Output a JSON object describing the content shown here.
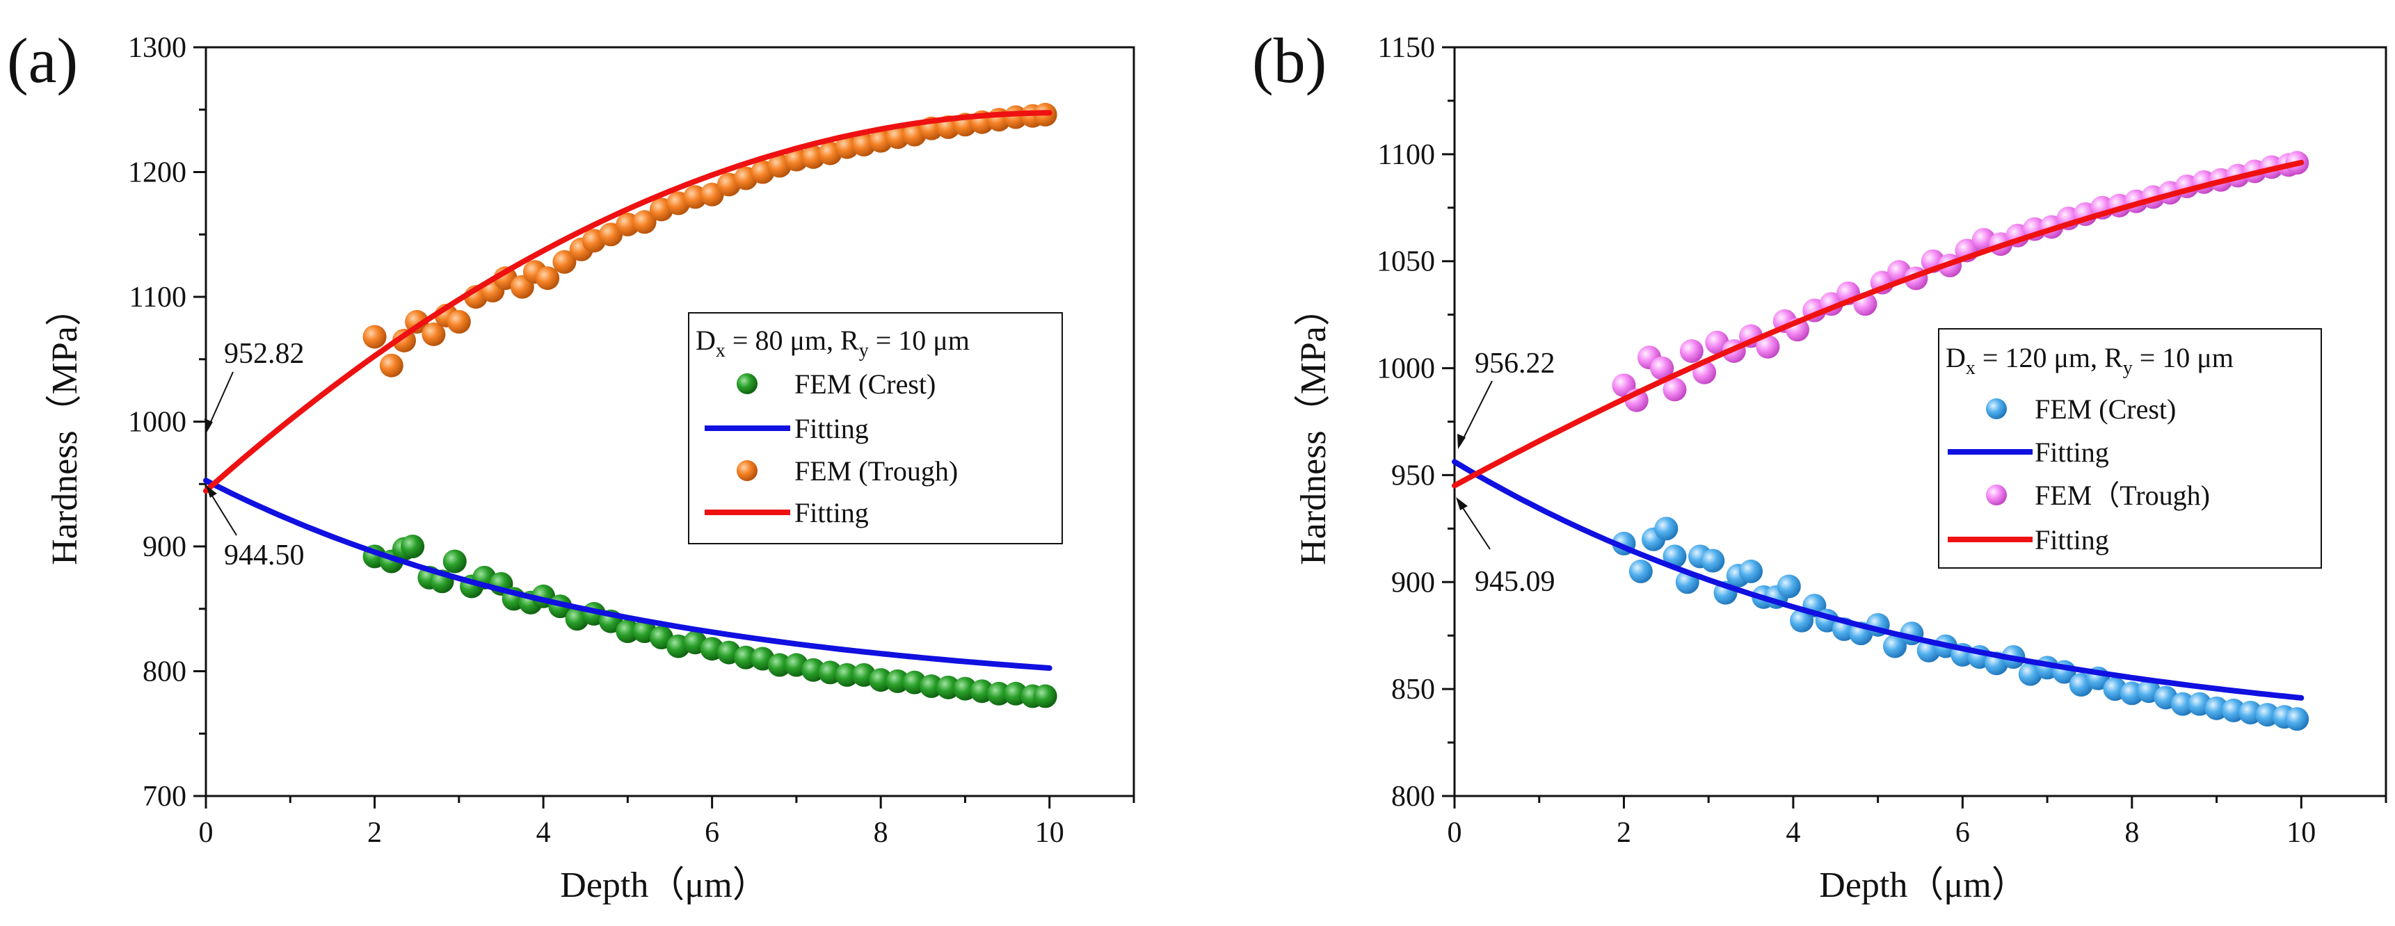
{
  "chart_data": [
    {
      "type": "scatter",
      "panel_label": "(a)",
      "xlabel": "Depth（μm）",
      "ylabel": "Hardness（MPa）",
      "xlim": [
        0,
        11
      ],
      "ylim": [
        700,
        1300
      ],
      "xticks": [
        0,
        2,
        4,
        6,
        8,
        10
      ],
      "yticks": [
        700,
        800,
        900,
        1000,
        1100,
        1200,
        1300
      ],
      "legend": {
        "title": {
          "main": "D",
          "sub1": "x",
          "mid": " = 80 μm, R",
          "sub2": "y",
          "end": " = 10 μm"
        },
        "entries": [
          "FEM  (Crest)",
          "Fitting",
          "FEM  (Trough)",
          "Fitting"
        ],
        "placement": "center-right"
      },
      "annotations": [
        {
          "text": "952.82",
          "x": 0,
          "y": 952.82,
          "position": "above"
        },
        {
          "text": "944.50",
          "x": 0,
          "y": 944.5,
          "position": "below"
        }
      ],
      "colors": {
        "crest": "#1a8c1a",
        "trough": "#f07a22",
        "fit_crest": "#1010e0",
        "fit_trough": "#ee1111"
      },
      "series": [
        {
          "name": "FEM  (Crest)",
          "kind": "scatter",
          "x": [
            2.0,
            2.2,
            2.35,
            2.45,
            2.65,
            2.8,
            2.95,
            3.15,
            3.3,
            3.5,
            3.65,
            3.85,
            4.0,
            4.2,
            4.4,
            4.6,
            4.8,
            5.0,
            5.2,
            5.4,
            5.6,
            5.8,
            6.0,
            6.2,
            6.4,
            6.6,
            6.8,
            7.0,
            7.2,
            7.4,
            7.6,
            7.8,
            8.0,
            8.2,
            8.4,
            8.6,
            8.8,
            9.0,
            9.2,
            9.4,
            9.6,
            9.8,
            9.95
          ],
          "y": [
            892,
            888,
            898,
            900,
            875,
            872,
            888,
            868,
            875,
            870,
            858,
            855,
            860,
            852,
            842,
            846,
            840,
            832,
            832,
            827,
            820,
            823,
            818,
            815,
            811,
            810,
            805,
            805,
            801,
            799,
            797,
            797,
            793,
            792,
            791,
            788,
            787,
            786,
            784,
            782,
            782,
            780,
            780
          ]
        },
        {
          "name": "Fitting",
          "kind": "line",
          "a": 779.0,
          "b": 173.82,
          "c": 0.2
        },
        {
          "name": "FEM  (Trough)",
          "kind": "scatter",
          "x": [
            2.0,
            2.2,
            2.35,
            2.5,
            2.7,
            2.85,
            3.0,
            3.2,
            3.4,
            3.55,
            3.75,
            3.9,
            4.05,
            4.25,
            4.45,
            4.6,
            4.8,
            5.0,
            5.2,
            5.4,
            5.6,
            5.8,
            6.0,
            6.2,
            6.4,
            6.6,
            6.8,
            7.0,
            7.2,
            7.4,
            7.6,
            7.8,
            8.0,
            8.2,
            8.4,
            8.6,
            8.8,
            9.0,
            9.2,
            9.4,
            9.6,
            9.8,
            9.95
          ],
          "y": [
            1068,
            1045,
            1065,
            1080,
            1070,
            1085,
            1080,
            1100,
            1105,
            1115,
            1108,
            1120,
            1115,
            1128,
            1138,
            1145,
            1150,
            1158,
            1160,
            1170,
            1175,
            1180,
            1182,
            1190,
            1195,
            1200,
            1205,
            1210,
            1212,
            1215,
            1220,
            1222,
            1225,
            1228,
            1230,
            1235,
            1236,
            1238,
            1240,
            1242,
            1244,
            1245,
            1246
          ]
        },
        {
          "name": "Fitting",
          "kind": "quad",
          "p0": 944.5,
          "p1": 60.0,
          "p2": -2.97
        }
      ]
    },
    {
      "type": "scatter",
      "panel_label": "(b)",
      "xlabel": "Depth（μm）",
      "ylabel": "Hardness（MPa）",
      "xlim": [
        0,
        11
      ],
      "ylim": [
        800,
        1150
      ],
      "xticks": [
        0,
        2,
        4,
        6,
        8,
        10
      ],
      "yticks": [
        800,
        850,
        900,
        950,
        1000,
        1050,
        1100,
        1150
      ],
      "legend": {
        "title": {
          "main": "D",
          "sub1": "x",
          "mid": " = 120 μm, R",
          "sub2": "y",
          "end": " = 10 μm"
        },
        "entries": [
          "FEM  (Crest)",
          "Fitting",
          "FEM（Trough)",
          "Fitting"
        ],
        "placement": "center-right"
      },
      "annotations": [
        {
          "text": "956.22",
          "x": 0,
          "y": 956.22,
          "position": "above"
        },
        {
          "text": "945.09",
          "x": 0,
          "y": 945.09,
          "position": "below"
        }
      ],
      "colors": {
        "crest": "#4aa8e8",
        "trough": "#f07ef0",
        "fit_crest": "#1010e0",
        "fit_trough": "#ee1111"
      },
      "series": [
        {
          "name": "FEM  (Crest)",
          "kind": "scatter",
          "x": [
            2.0,
            2.2,
            2.35,
            2.5,
            2.6,
            2.75,
            2.9,
            3.05,
            3.2,
            3.35,
            3.5,
            3.65,
            3.8,
            3.95,
            4.1,
            4.25,
            4.4,
            4.6,
            4.8,
            5.0,
            5.2,
            5.4,
            5.6,
            5.8,
            6.0,
            6.2,
            6.4,
            6.6,
            6.8,
            7.0,
            7.2,
            7.4,
            7.6,
            7.8,
            8.0,
            8.2,
            8.4,
            8.6,
            8.8,
            9.0,
            9.2,
            9.4,
            9.6,
            9.8,
            9.95
          ],
          "y": [
            918,
            905,
            920,
            925,
            912,
            900,
            912,
            910,
            895,
            903,
            905,
            893,
            893,
            898,
            882,
            889,
            882,
            878,
            876,
            880,
            870,
            876,
            868,
            870,
            866,
            865,
            862,
            865,
            857,
            860,
            858,
            852,
            855,
            850,
            848,
            849,
            846,
            843,
            843,
            841,
            840,
            839,
            838,
            837,
            836
          ]
        },
        {
          "name": "Fitting",
          "kind": "line",
          "a": 824.0,
          "b": 132.22,
          "c": 0.18
        },
        {
          "name": "FEM（Trough)",
          "kind": "scatter",
          "x": [
            2.0,
            2.15,
            2.3,
            2.45,
            2.6,
            2.8,
            2.95,
            3.1,
            3.3,
            3.5,
            3.7,
            3.9,
            4.05,
            4.25,
            4.45,
            4.65,
            4.85,
            5.05,
            5.25,
            5.45,
            5.65,
            5.85,
            6.05,
            6.25,
            6.45,
            6.65,
            6.85,
            7.05,
            7.25,
            7.45,
            7.65,
            7.85,
            8.05,
            8.25,
            8.45,
            8.65,
            8.85,
            9.05,
            9.25,
            9.45,
            9.65,
            9.85,
            9.95
          ],
          "y": [
            992,
            985,
            1005,
            1000,
            990,
            1008,
            998,
            1012,
            1008,
            1015,
            1010,
            1022,
            1018,
            1027,
            1030,
            1035,
            1030,
            1040,
            1045,
            1042,
            1050,
            1048,
            1055,
            1060,
            1058,
            1062,
            1065,
            1066,
            1070,
            1072,
            1075,
            1076,
            1078,
            1080,
            1082,
            1085,
            1087,
            1088,
            1090,
            1092,
            1094,
            1095,
            1096
          ]
        },
        {
          "name": "Fitting",
          "kind": "quad",
          "p0": 945.09,
          "p1": 21.5,
          "p2": -0.64
        }
      ]
    }
  ]
}
